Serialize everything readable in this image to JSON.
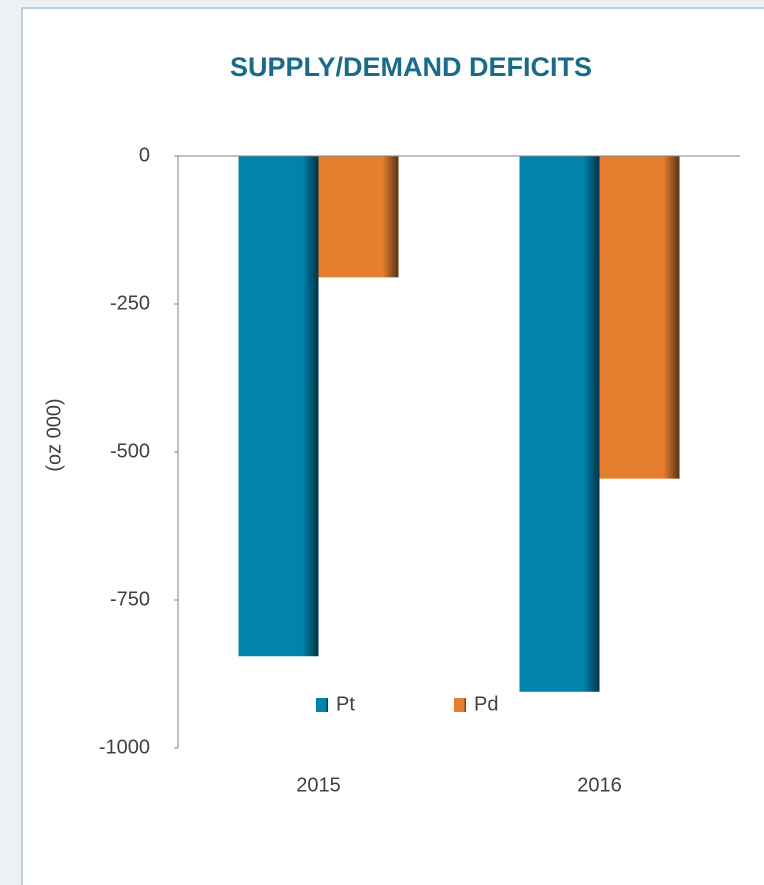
{
  "chart_data": {
    "type": "bar",
    "title": "SUPPLY/DEMAND DEFICITS",
    "y_axis_label": "(oz 000)",
    "categories": [
      "2015",
      "2016"
    ],
    "series": [
      {
        "name": "Pt",
        "color": "#0083ad",
        "values": [
          -845,
          -905
        ]
      },
      {
        "name": "Pd",
        "color": "#e57e2e",
        "values": [
          -205,
          -545
        ]
      }
    ],
    "ylim": [
      -1000,
      0
    ],
    "yticks": [
      0,
      -250,
      -500,
      -750,
      -1000
    ],
    "legend": "bottom"
  }
}
